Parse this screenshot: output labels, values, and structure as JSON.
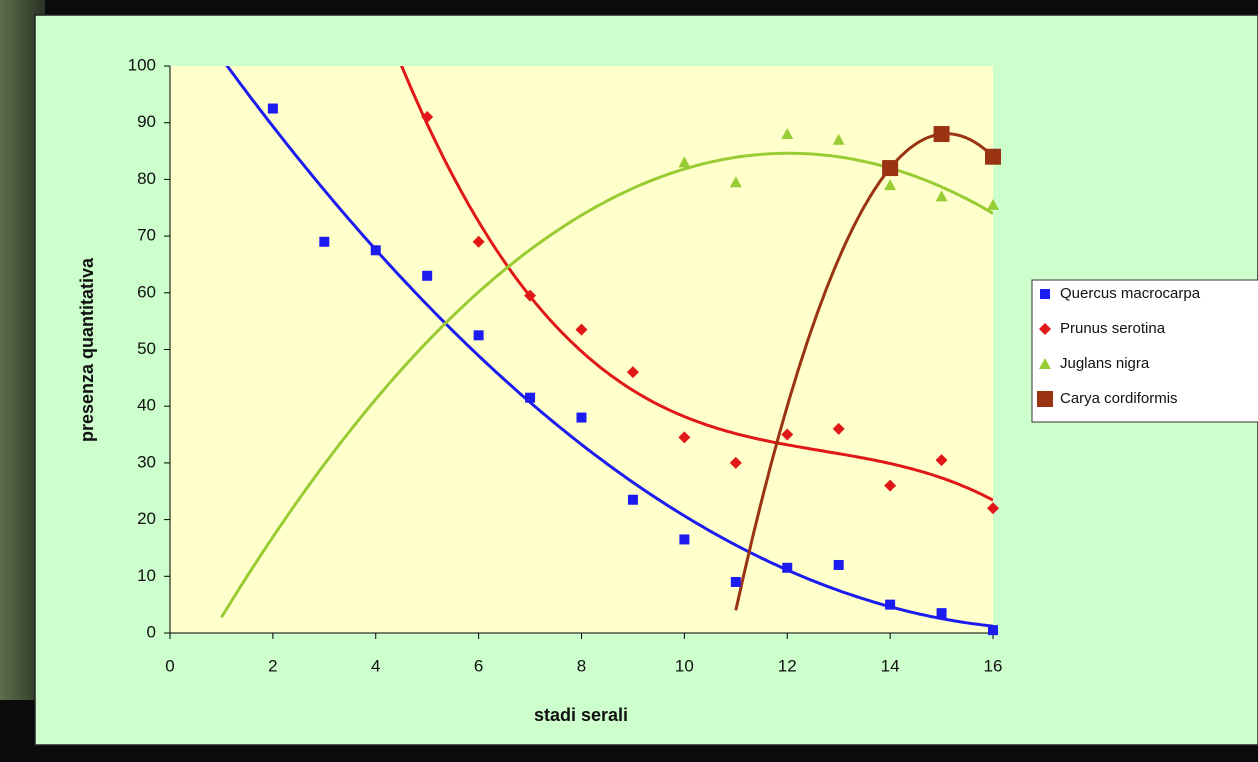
{
  "chart_data": {
    "type": "scatter",
    "x_label": "stadi serali",
    "y_label": "presenza quantitativa",
    "xlim": [
      0,
      16
    ],
    "xticks": [
      0,
      2,
      4,
      6,
      8,
      10,
      12,
      14,
      16
    ],
    "ylim": [
      0,
      100
    ],
    "yticks": [
      0,
      10,
      20,
      30,
      40,
      50,
      60,
      70,
      80,
      90,
      100
    ],
    "legend": "right",
    "series": [
      {
        "name": "Quercus macrocarpa",
        "color": "#1c1cf0",
        "marker": "square",
        "x": [
          2,
          3,
          4,
          5,
          6,
          7,
          8,
          9,
          10,
          11,
          12,
          13,
          14,
          15,
          16
        ],
        "values": [
          92.5,
          69,
          67.5,
          63,
          52.5,
          41.5,
          38,
          23.5,
          16.5,
          9,
          11.5,
          12,
          5,
          3.5,
          0.5
        ],
        "trendline": {
          "order": 2,
          "x": [
            1,
            16
          ]
        }
      },
      {
        "name": "Prunus serotina",
        "color": "#e01818",
        "marker": "diamond",
        "x": [
          5,
          6,
          7,
          8,
          9,
          10,
          11,
          12,
          13,
          14,
          15,
          16
        ],
        "values": [
          91,
          69,
          59.5,
          53.5,
          46,
          34.5,
          30,
          35,
          36,
          26,
          30.5,
          22
        ],
        "trendline": {
          "order": 3,
          "x": [
            4,
            16
          ]
        }
      },
      {
        "name": "Juglans nigra",
        "color": "#99cc33",
        "marker": "triangle",
        "x": [
          10,
          11,
          12,
          13,
          14,
          15,
          16
        ],
        "values": [
          83,
          79.5,
          88,
          87,
          79,
          77,
          75.5
        ],
        "trendline": {
          "order": 2,
          "x": [
            1,
            16
          ]
        }
      },
      {
        "name": "Carya cordiformis",
        "color": "#993311",
        "marker": "bigsquare",
        "x": [
          14,
          15,
          16
        ],
        "values": [
          82,
          88,
          84
        ],
        "trendline": {
          "order": 2,
          "x": [
            11,
            16
          ]
        }
      }
    ]
  }
}
